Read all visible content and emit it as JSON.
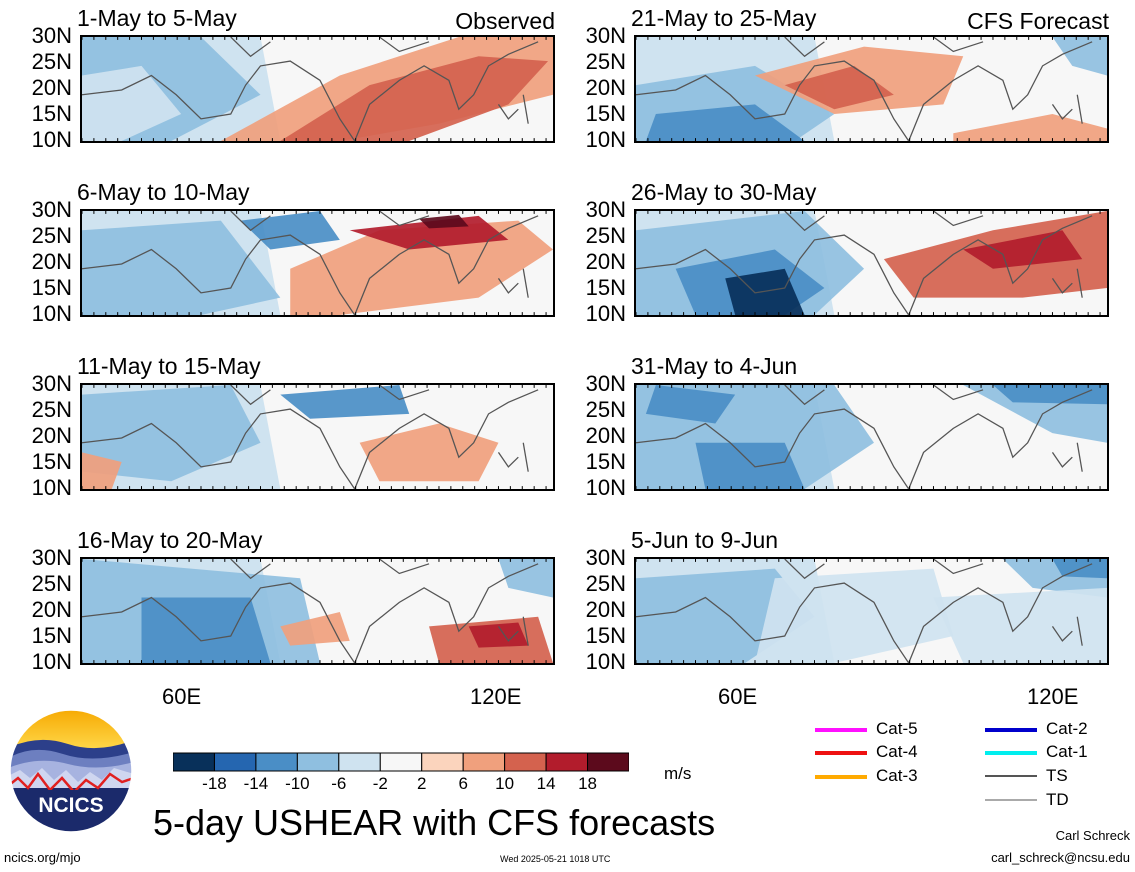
{
  "panels": [
    {
      "title": "1-May to 5-May",
      "corner": "Observed"
    },
    {
      "title": "21-May to 25-May",
      "corner": "CFS Forecast"
    },
    {
      "title": "6-May to 10-May",
      "corner": ""
    },
    {
      "title": "26-May to 30-May",
      "corner": ""
    },
    {
      "title": "11-May to 15-May",
      "corner": ""
    },
    {
      "title": "31-May to 4-Jun",
      "corner": ""
    },
    {
      "title": "16-May to 20-May",
      "corner": ""
    },
    {
      "title": "5-Jun to 9-Jun",
      "corner": ""
    }
  ],
  "lat_labels": [
    "30N",
    "25N",
    "20N",
    "15N",
    "10N"
  ],
  "lon_labels": [
    "60E",
    "120E"
  ],
  "colorbar": {
    "unit": "m/s",
    "tick_labels": [
      "-18",
      "-14",
      "-10",
      "-6",
      "-2",
      "2",
      "6",
      "10",
      "14",
      "18"
    ],
    "colors": [
      "#08305a",
      "#2566b0",
      "#4a8ec6",
      "#8fbfe0",
      "#cfe3f0",
      "#f7f7f7",
      "#fbd4bd",
      "#f0a07d",
      "#d4624e",
      "#b21c2c",
      "#5c0a1c"
    ]
  },
  "storm_legend": [
    {
      "label": "Cat-5",
      "color": "#ff10ff"
    },
    {
      "label": "Cat-4",
      "color": "#ee1111"
    },
    {
      "label": "Cat-3",
      "color": "#ffaa00"
    },
    {
      "label": "Cat-2",
      "color": "#0000cc"
    },
    {
      "label": "Cat-1",
      "color": "#00eeee"
    },
    {
      "label": "TS",
      "color": "#555555"
    },
    {
      "label": "TD",
      "color": "#aaaaaa"
    }
  ],
  "logo": {
    "text": "NCICS"
  },
  "title": "5-day USHEAR with CFS forecasts",
  "footer": {
    "url": "ncics.org/mjo",
    "timestamp": "Wed 2025-05-21 1018 UTC",
    "author": "Carl Schreck",
    "email": "carl_schreck@ncsu.edu"
  }
}
